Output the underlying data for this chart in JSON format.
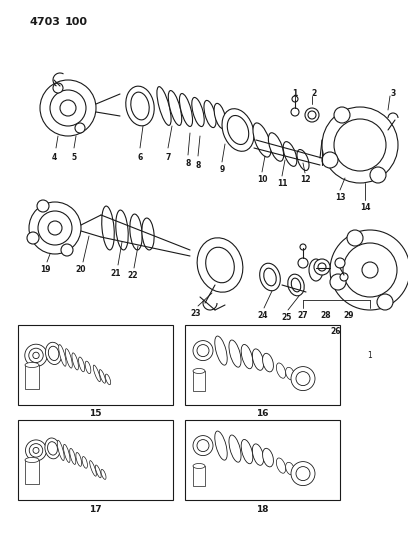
{
  "bg_color": "#ffffff",
  "line_color": "#1a1a1a",
  "fig_width": 4.08,
  "fig_height": 5.33,
  "dpi": 100,
  "header1": "4703",
  "header2": "100",
  "part_label": "1"
}
